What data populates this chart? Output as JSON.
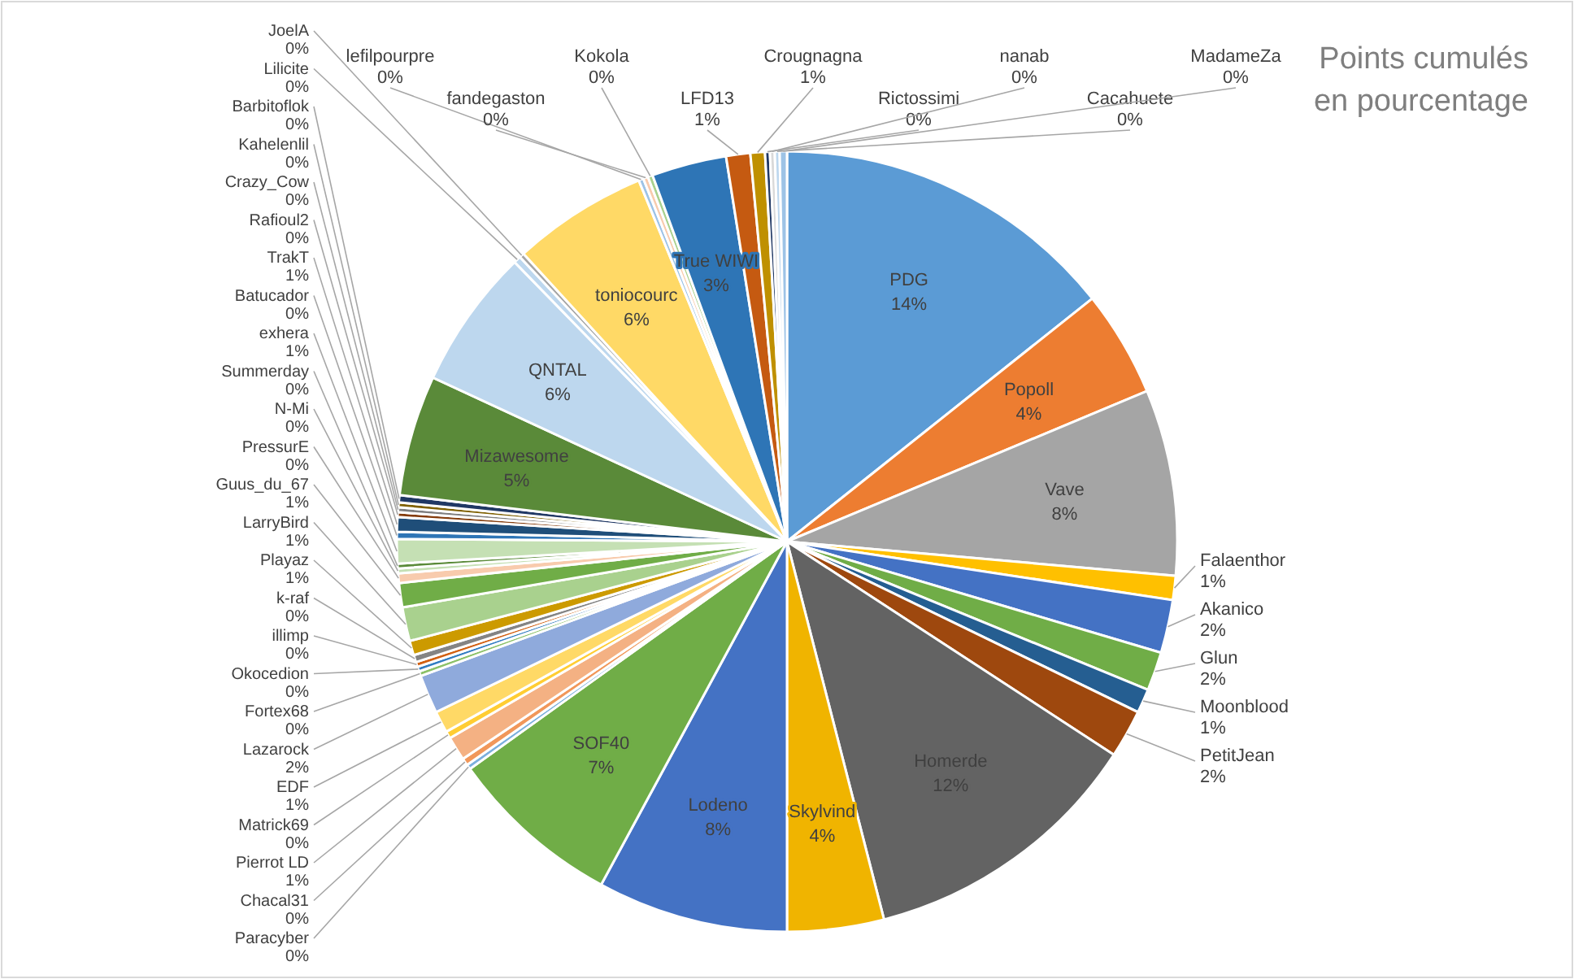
{
  "chart_data": {
    "type": "pie",
    "title": "Points cumulés en pourcentage",
    "categories": [
      "PDG",
      "Popoll",
      "Vave",
      "Falaenthor",
      "Akanico",
      "Glun",
      "Moonblood",
      "PetitJean",
      "Homerde",
      "Skylvind",
      "Lodeno",
      "SOF40",
      "Paracyber",
      "Chacal31",
      "Pierrot LD",
      "Matrick69",
      "EDF",
      "Lazarock",
      "Fortex68",
      "Okocedion",
      "illimp",
      "k-raf",
      "Playaz",
      "LarryBird",
      "Guus_du_67",
      "PressurE",
      "N-Mi",
      "Summerday",
      "exhera",
      "Batucador",
      "TrakT",
      "Rafioul2",
      "Crazy_Cow",
      "Kahelenlil",
      "Barbitoflok",
      "Mizawesome",
      "QNTAL",
      "Lilicite",
      "JoelA",
      "toniocourc",
      "lefilpourpre",
      "fandegaston",
      "Kokola",
      "True WIWI",
      "LFD13",
      "Crougnagna",
      "Rictossimi",
      "nanab",
      "Cacahuete",
      "MadameZa"
    ],
    "values": [
      14.3,
      4.4,
      7.7,
      1.0,
      2.2,
      1.6,
      1.0,
      2.0,
      11.8,
      4.0,
      7.9,
      7.2,
      0.2,
      0.3,
      1.0,
      0.3,
      0.9,
      1.6,
      0.2,
      0.2,
      0.2,
      0.3,
      0.6,
      1.4,
      1.0,
      0.4,
      0.2,
      0.2,
      1.0,
      0.3,
      0.6,
      0.2,
      0.2,
      0.2,
      0.3,
      5.0,
      5.8,
      0.3,
      0.2,
      5.6,
      0.2,
      0.2,
      0.2,
      3.1,
      1.0,
      0.6,
      0.2,
      0.2,
      0.2,
      0.3
    ],
    "value_labels": [
      "14%",
      "4%",
      "8%",
      "1%",
      "2%",
      "2%",
      "1%",
      "2%",
      "12%",
      "4%",
      "8%",
      "7%",
      "0%",
      "0%",
      "1%",
      "0%",
      "1%",
      "2%",
      "0%",
      "0%",
      "0%",
      "0%",
      "1%",
      "1%",
      "1%",
      "0%",
      "0%",
      "0%",
      "1%",
      "0%",
      "1%",
      "0%",
      "0%",
      "0%",
      "0%",
      "5%",
      "6%",
      "0%",
      "0%",
      "6%",
      "0%",
      "0%",
      "0%",
      "3%",
      "1%",
      "1%",
      "0%",
      "0%",
      "0%",
      "0%"
    ],
    "colors": [
      "#5b9bd5",
      "#ed7d31",
      "#a5a5a5",
      "#ffc000",
      "#4472c4",
      "#70ad47",
      "#255e91",
      "#9e480e",
      "#636363",
      "#f0b400",
      "#4472c4",
      "#70ad47",
      "#7cafdd",
      "#f1975a",
      "#f4b183",
      "#ffcd33",
      "#ffd966",
      "#8faadc",
      "#8cc168",
      "#327dc2",
      "#d26012",
      "#848484",
      "#cc9a00",
      "#a9d18e",
      "#70ad47",
      "#f8cbad",
      "#c5e0b4",
      "#5a8a39",
      "#c5e0b4",
      "#2e75b6",
      "#1f4e79",
      "#843c0c",
      "#7f7f7f",
      "#7f6000",
      "#203864",
      "#5a8a39",
      "#bdd7ee",
      "#bdd7ee",
      "#a5a5a5",
      "#ffd966",
      "#9dc3e6",
      "#f8cbad",
      "#a9d18e",
      "#2e75b6",
      "#c55a11",
      "#bf9000",
      "#203864",
      "#d9d9d9",
      "#bdd7ee",
      "#9dc3e6"
    ]
  }
}
